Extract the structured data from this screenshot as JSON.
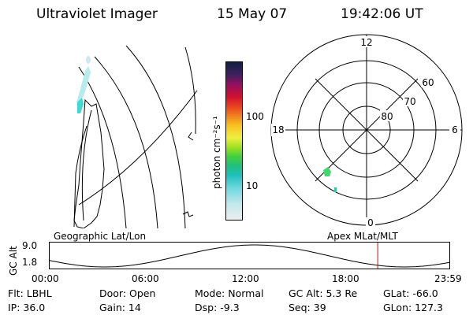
{
  "header": {
    "title": "Ultraviolet Imager",
    "date": "15 May 07",
    "time": "19:42:06 UT"
  },
  "geo_panel": {
    "label": "Geographic Lat/Lon"
  },
  "colorbar": {
    "unit_label": "photon cm⁻²s⁻¹",
    "ticks": [
      "100",
      "10"
    ]
  },
  "polar_panel": {
    "label": "Apex MLat/MLT",
    "mlt_labels": {
      "top": "12",
      "left": "18",
      "right": "6",
      "bottom": "0"
    },
    "lat_labels": [
      "60",
      "70",
      "80"
    ]
  },
  "altitude_plot": {
    "ylabel": "GC Alt",
    "ytick_top": "9.0",
    "ytick_bottom": "1.8",
    "xticks": [
      "00:00",
      "06:00",
      "12:00",
      "18:00",
      "23:59"
    ],
    "current_time_marker_hours": 19.7
  },
  "info": {
    "flt": "Flt: LBHL",
    "ip": "IP: 36.0",
    "door": "Door: Open",
    "gain": "Gain: 14",
    "mode": "Mode: Normal",
    "dsp": "Dsp:   -9.3",
    "gcalt": "GC Alt: 5.3 Re",
    "seq": "Seq: 39",
    "glat": "GLat: -66.0",
    "glon": "GLon: 127.3"
  },
  "colors": {
    "marker": "#e00000",
    "aurora": "#40d8d0"
  }
}
